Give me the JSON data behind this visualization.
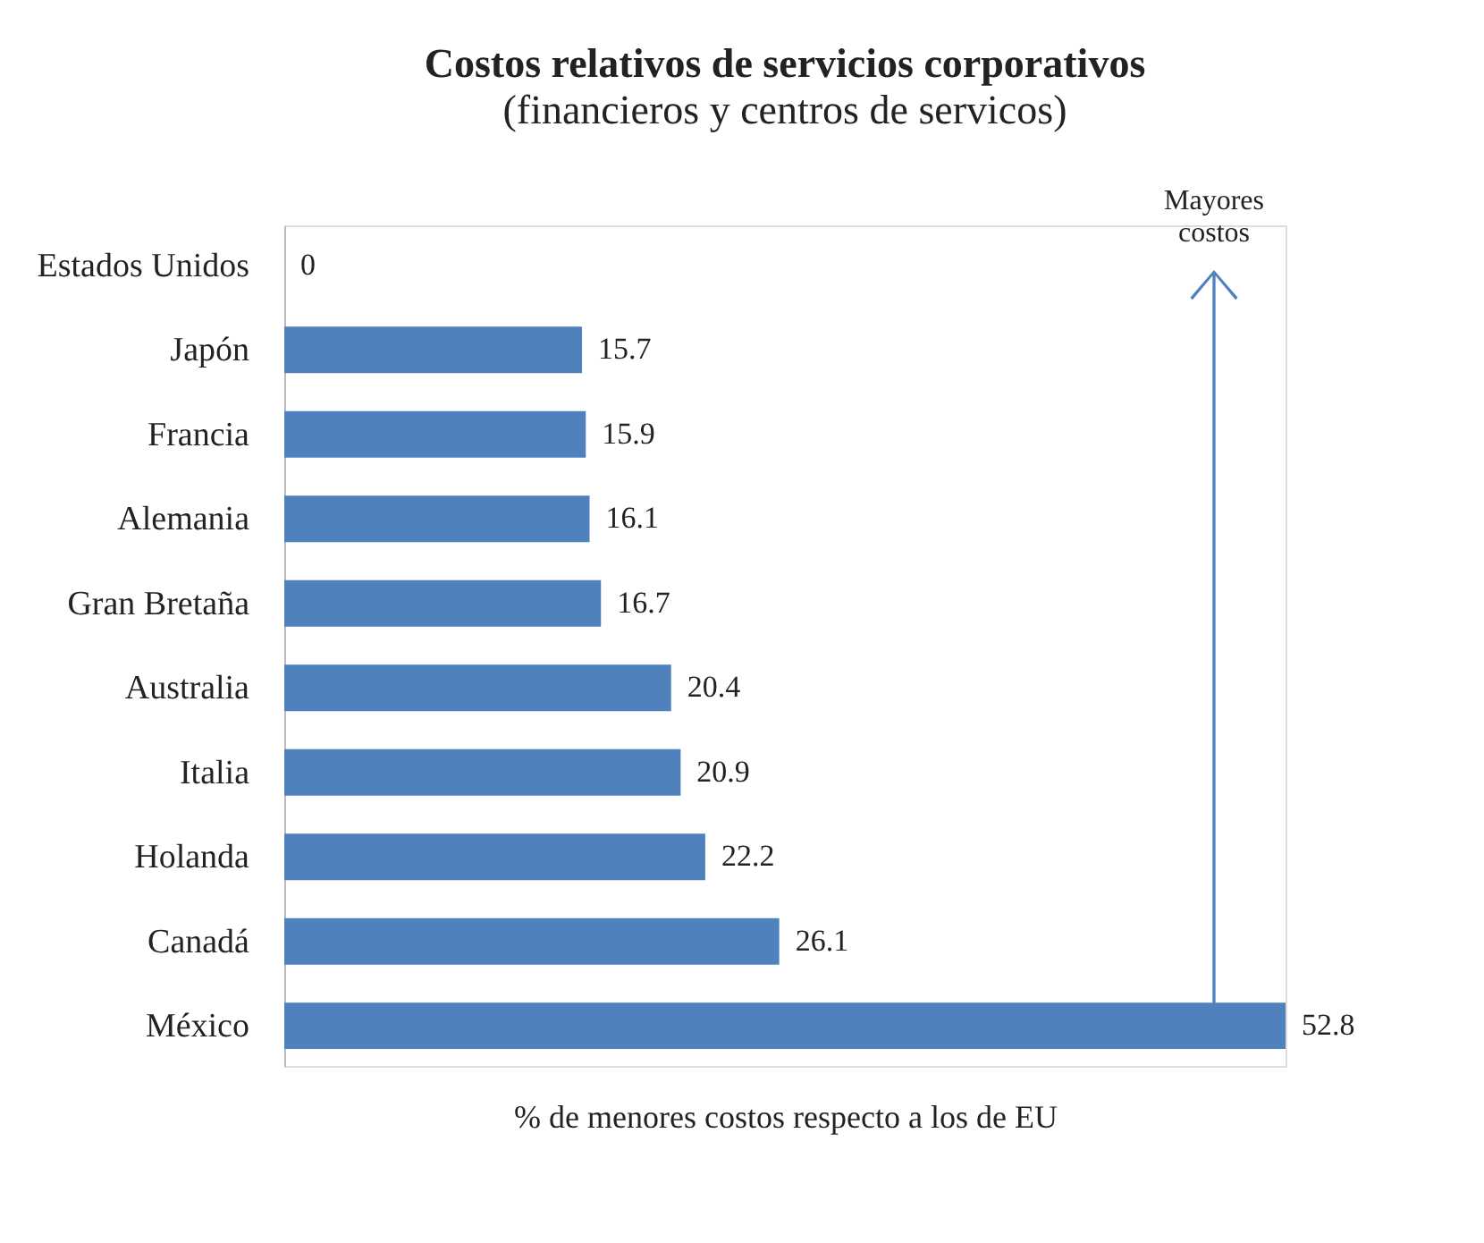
{
  "chart_data": {
    "type": "bar",
    "orientation": "horizontal",
    "title": "Costos relativos de servicios corporativos",
    "subtitle": "(financieros y centros de servicos)",
    "xlabel": "% de menores costos respecto a los de EU",
    "categories": [
      "Estados Unidos",
      "Japón",
      "Francia",
      "Alemania",
      "Gran Bretaña",
      "Australia",
      "Italia",
      "Holanda",
      "Canadá",
      "México"
    ],
    "values": [
      0,
      15.7,
      15.9,
      16.1,
      16.7,
      20.4,
      20.9,
      22.2,
      26.1,
      52.8
    ],
    "color": "#4f81bd",
    "data_labels": true,
    "annotations": [
      "Mayores costos"
    ]
  }
}
